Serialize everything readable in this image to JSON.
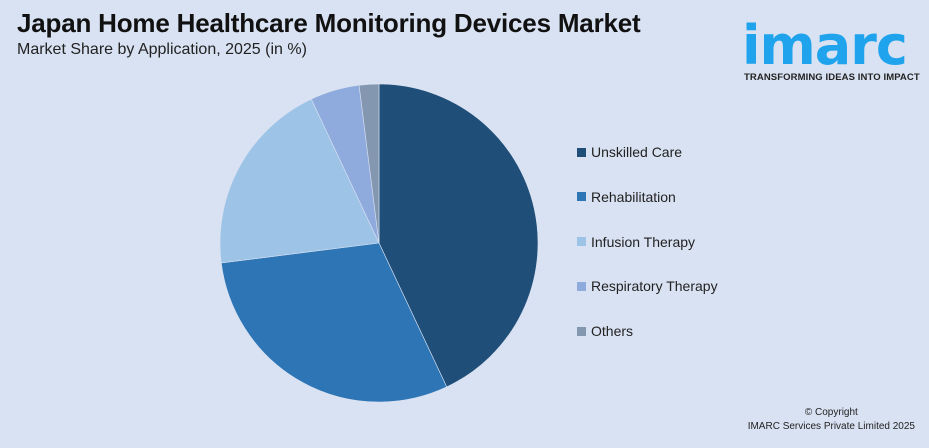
{
  "header": {
    "title": "Japan Home Healthcare Monitoring Devices Market",
    "subtitle": "Market Share by Application, 2025 (in %)"
  },
  "logo": {
    "wordmark": "imarc",
    "tagline": "TRANSFORMING IDEAS INTO IMPACT",
    "color": "#1fa3ec"
  },
  "footer": {
    "copyright": "© Copyright",
    "company": "IMARC Services Private Limited 2025"
  },
  "legend": {
    "items": [
      {
        "label": "Unskilled Care",
        "color": "#1f4e79"
      },
      {
        "label": "Rehabilitation",
        "color": "#2e75b6"
      },
      {
        "label": "Infusion Therapy",
        "color": "#9dc3e6"
      },
      {
        "label": "Respiratory Therapy",
        "color": "#8faadc"
      },
      {
        "label": "Others",
        "color": "#8497b0"
      }
    ]
  },
  "chart_data": {
    "type": "pie",
    "title": "Japan Home Healthcare Monitoring Devices Market",
    "subtitle": "Market Share by Application, 2025 (in %)",
    "categories": [
      "Unskilled Care",
      "Rehabilitation",
      "Infusion Therapy",
      "Respiratory Therapy",
      "Others"
    ],
    "values": [
      43,
      30,
      20,
      5,
      2
    ],
    "colors": [
      "#1f4e79",
      "#2e75b6",
      "#9dc3e6",
      "#8faadc",
      "#8497b0"
    ],
    "start_angle": "12 o'clock, clockwise",
    "legend_position": "right",
    "data_labels": false
  }
}
